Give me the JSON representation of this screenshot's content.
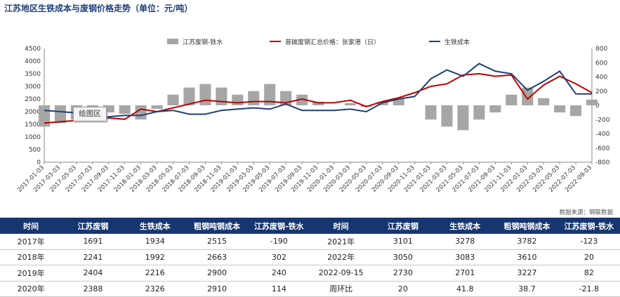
{
  "title": "江苏地区生铁成本与废钢价格走势（单位：元/吨）",
  "tag_label": "绘图区",
  "source": "数据来源：钢联数据",
  "chart_data": {
    "type": "line",
    "title": "江苏地区生铁成本与废钢价格走势（单位：元/吨）",
    "legend_position": "top",
    "left_axis": {
      "min": 0,
      "max": 4500,
      "ticks": [
        "0",
        "500",
        "1000",
        "1500",
        "2000",
        "2500",
        "3000",
        "3500",
        "4000",
        "4500"
      ]
    },
    "right_axis": {
      "min": -800,
      "max": 800,
      "ticks": [
        "-800",
        "-600",
        "-400",
        "-200",
        "0",
        "200",
        "400",
        "600",
        "800"
      ]
    },
    "x_ticks": [
      "2017-01-03",
      "2017-03-03",
      "2017-05-03",
      "2017-07-03",
      "2017-09-03",
      "2017-11-03",
      "2018-01-03",
      "2018-03-03",
      "2018-05-03",
      "2018-07-03",
      "2018-09-03",
      "2018-11-03",
      "2019-01-03",
      "2019-03-03",
      "2019-05-03",
      "2019-07-03",
      "2019-09-03",
      "2019-11-03",
      "2020-01-03",
      "2020-03-03",
      "2020-05-03",
      "2020-07-03",
      "2020-09-03",
      "2020-11-03",
      "2021-01-03",
      "2021-03-03",
      "2021-05-03",
      "2021-07-03",
      "2021-09-03",
      "2021-11-03",
      "2022-01-03",
      "2022-03-03",
      "2022-05-03",
      "2022-07-03",
      "2022-09-03"
    ],
    "grid": false,
    "series": [
      {
        "name": "江苏废钢-铁水",
        "axis": "right",
        "kind": "bar",
        "color": "#a6a6a6",
        "values": [
          -300,
          -250,
          -200,
          -150,
          -100,
          -120,
          -200,
          -50,
          150,
          250,
          300,
          250,
          150,
          200,
          300,
          200,
          150,
          50,
          0,
          30,
          -20,
          50,
          100,
          0,
          -200,
          -300,
          -350,
          -200,
          -100,
          150,
          250,
          100,
          -100,
          -150,
          80
        ]
      },
      {
        "name": "普碳废钢汇总价格：张家港（日）",
        "axis": "left",
        "kind": "line",
        "color": "#c00000",
        "values": [
          1550,
          1600,
          1650,
          1700,
          1750,
          1700,
          2100,
          2000,
          2150,
          2300,
          2450,
          2400,
          2350,
          2400,
          2400,
          2350,
          2500,
          2350,
          2350,
          2450,
          2200,
          2400,
          2550,
          2750,
          3000,
          3100,
          3450,
          3500,
          3400,
          3450,
          2500,
          3050,
          3400,
          3100,
          2750
        ]
      },
      {
        "name": "生铁成本",
        "axis": "left",
        "kind": "line",
        "color": "#1f3f7a",
        "values": [
          2050,
          2000,
          1950,
          1800,
          1800,
          1850,
          1850,
          2000,
          2050,
          1900,
          1900,
          2050,
          2100,
          2150,
          2100,
          2300,
          2050,
          2050,
          2050,
          2100,
          2000,
          2350,
          2500,
          2600,
          3300,
          3650,
          3400,
          3900,
          3600,
          3500,
          2850,
          3200,
          3600,
          2700,
          2700
        ]
      }
    ]
  },
  "table": {
    "headers": [
      "时间",
      "江苏废钢",
      "生铁成本",
      "粗钢吨钢成本",
      "江苏废钢-铁水",
      "时间",
      "江苏废钢",
      "生铁成本",
      "粗钢吨钢成本",
      "江苏废钢-铁水"
    ],
    "rows": [
      [
        "2017年",
        "1691",
        "1934",
        "2515",
        "-190",
        "2021年",
        "3101",
        "3278",
        "3782",
        "-123"
      ],
      [
        "2018年",
        "2241",
        "1992",
        "2663",
        "302",
        "2022年",
        "3050",
        "3083",
        "3610",
        "20"
      ],
      [
        "2019年",
        "2404",
        "2216",
        "2900",
        "240",
        "2022-09-15",
        "2730",
        "2701",
        "3227",
        "82"
      ],
      [
        "2020年",
        "2388",
        "2326",
        "2910",
        "114",
        "周环比",
        "20",
        "41.8",
        "38.7",
        "-21.8"
      ]
    ]
  }
}
